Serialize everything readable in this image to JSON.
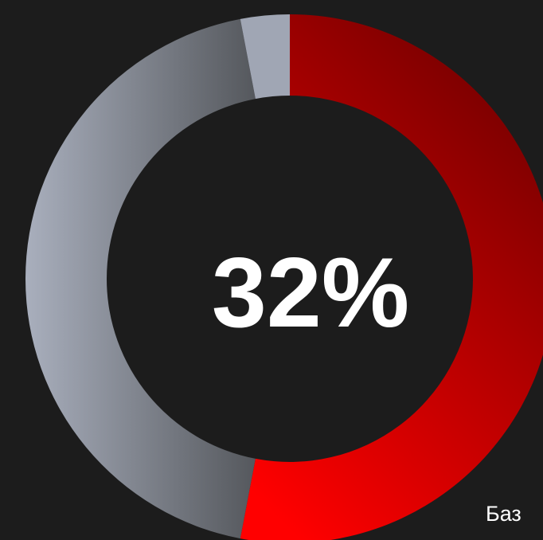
{
  "chart_data": {
    "type": "pie",
    "variant": "donut",
    "center_label": "32%",
    "slices": [
      {
        "value": 53,
        "color": "#cc0000"
      },
      {
        "value": 44,
        "color": "#8a8e98"
      },
      {
        "value": 3,
        "color": "#a0a6b4"
      }
    ]
  },
  "footer": {
    "text": "Баз"
  },
  "colors": {
    "background": "#1c1c1c",
    "red_dark": "#6e0000",
    "red_bright": "#ff0000",
    "gray_dark": "#55585d",
    "gray_light": "#a9afbd",
    "gray_cap": "#a0a6b4"
  }
}
